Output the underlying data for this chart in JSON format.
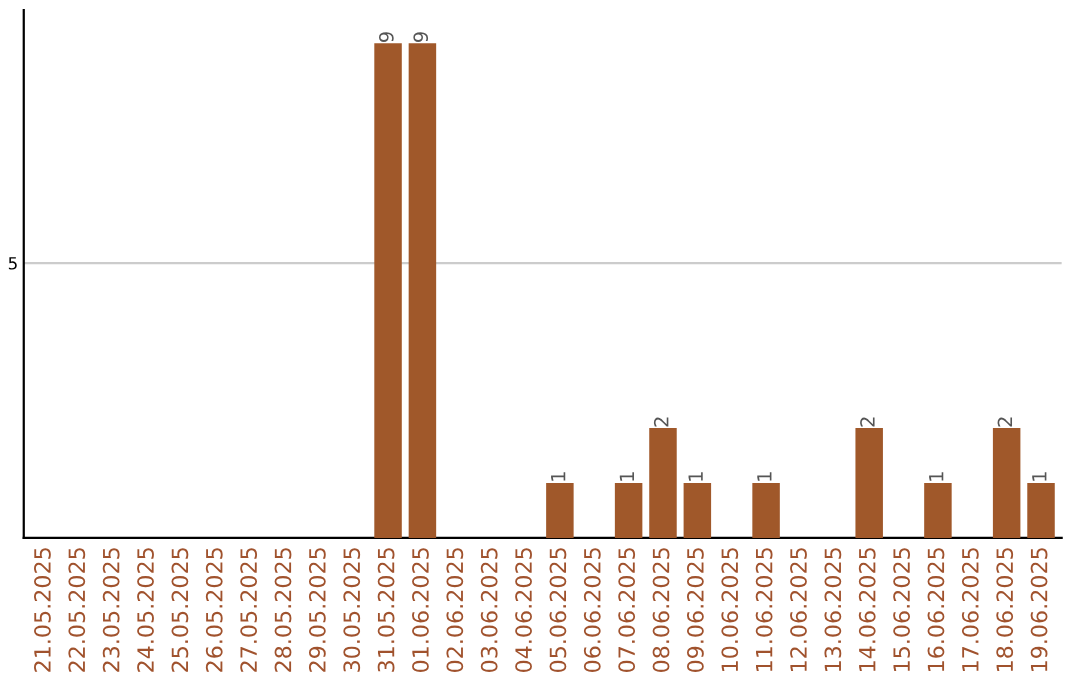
{
  "chart_data": {
    "type": "bar",
    "categories": [
      "21.05.2025",
      "22.05.2025",
      "23.05.2025",
      "24.05.2025",
      "25.05.2025",
      "26.05.2025",
      "27.05.2025",
      "28.05.2025",
      "29.05.2025",
      "30.05.2025",
      "31.05.2025",
      "01.06.2025",
      "02.06.2025",
      "03.06.2025",
      "04.06.2025",
      "05.06.2025",
      "06.06.2025",
      "07.06.2025",
      "08.06.2025",
      "09.06.2025",
      "10.06.2025",
      "11.06.2025",
      "12.06.2025",
      "13.06.2025",
      "14.06.2025",
      "15.06.2025",
      "16.06.2025",
      "17.06.2025",
      "18.06.2025",
      "19.06.2025"
    ],
    "values": [
      0,
      0,
      0,
      0,
      0,
      0,
      0,
      0,
      0,
      0,
      9,
      9,
      0,
      0,
      0,
      1,
      0,
      1,
      2,
      1,
      0,
      1,
      0,
      0,
      2,
      0,
      1,
      0,
      2,
      1
    ],
    "value_labels": [
      null,
      null,
      null,
      null,
      null,
      null,
      null,
      null,
      null,
      null,
      "9",
      "9",
      null,
      null,
      null,
      "1",
      null,
      "1",
      "2",
      "1",
      null,
      "1",
      null,
      null,
      "2",
      null,
      "1",
      null,
      "2",
      "1"
    ],
    "color": "#a0582a",
    "ylim": [
      0,
      9.6
    ],
    "yticks": [
      5
    ],
    "grid": "y"
  }
}
